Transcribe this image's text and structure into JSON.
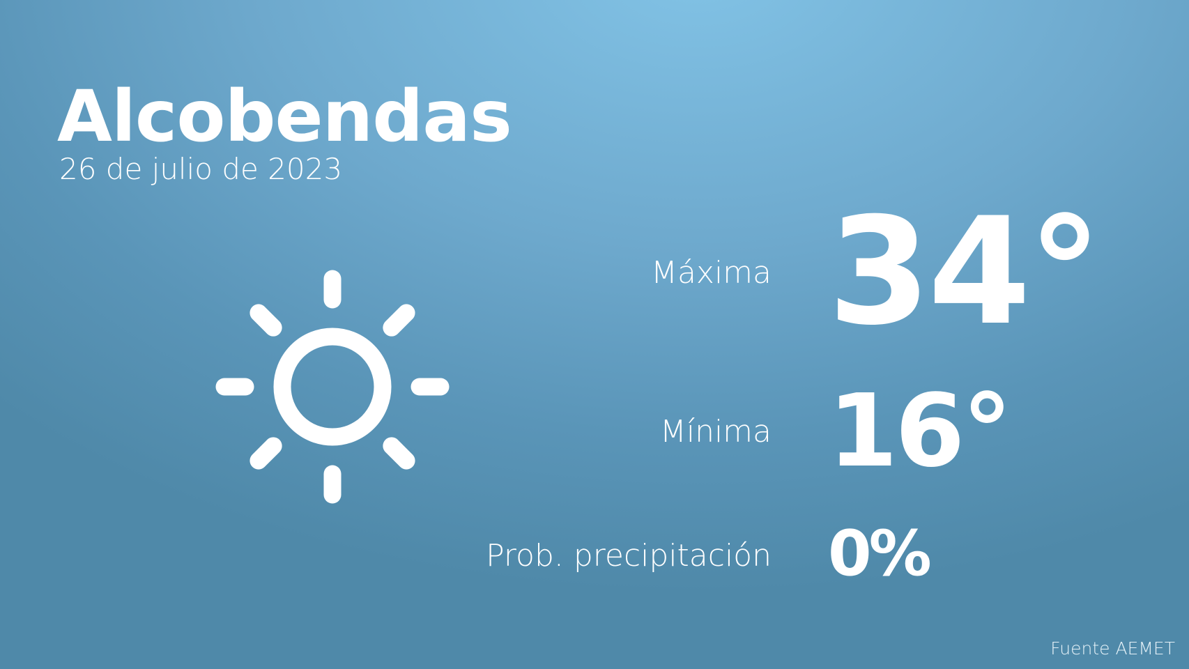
{
  "location": "Alcobendas",
  "date": "26 de julio de 2023",
  "weather_icon": "sun-icon",
  "max": {
    "label": "Máxima",
    "value": "34°"
  },
  "min": {
    "label": "Mínima",
    "value": "16°"
  },
  "precipitation": {
    "label": "Prob. precipitación",
    "value": "0%"
  },
  "source": "Fuente AEMET",
  "colors": {
    "background_top": "#82c3e6",
    "background_bottom": "#4f89a9",
    "text": "#ffffff"
  }
}
